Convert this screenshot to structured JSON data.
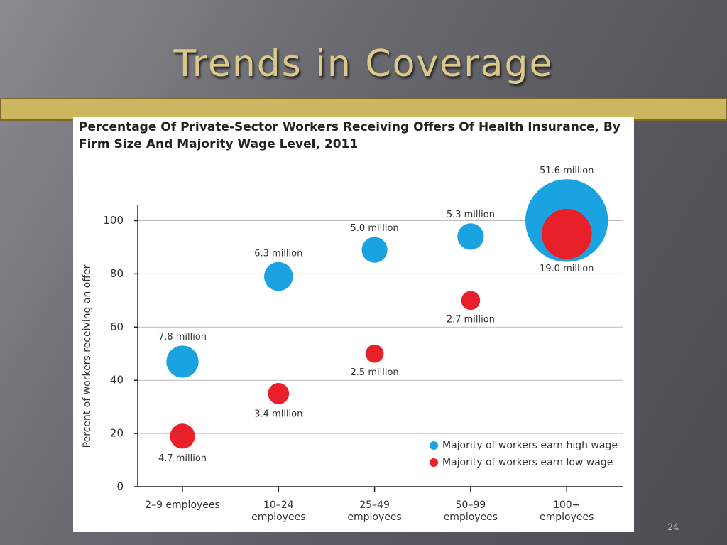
{
  "slide_title": "Trends in Coverage",
  "page_number": "24",
  "chart_data": {
    "type": "bubble",
    "title": "Percentage Of Private-Sector Workers Receiving Offers Of Health Insurance, By Firm Size And Majority Wage Level, 2011",
    "ylabel": "Percent of workers receiving an offer",
    "categories": [
      "2–9 employees",
      "10–24 employees",
      "25–49 employees",
      "50–99 employees",
      "100+ employees"
    ],
    "ylim": [
      0,
      106
    ],
    "yticks": [
      0,
      20,
      40,
      60,
      80,
      100
    ],
    "grid": true,
    "legend": "lower right",
    "series": [
      {
        "name": "Majority of workers earn high wage",
        "color": "#1aa3e0",
        "values": [
          47,
          79,
          89,
          94,
          100
        ],
        "sizes": [
          7.8,
          6.3,
          5.0,
          5.3,
          51.6
        ],
        "size_labels": [
          "7.8 million",
          "6.3 million",
          "5.0 million",
          "5.3 million",
          "51.6 million"
        ]
      },
      {
        "name": "Majority of workers earn low wage",
        "color": "#e8202a",
        "values": [
          19,
          35,
          50,
          70,
          95
        ],
        "sizes": [
          4.7,
          3.4,
          2.5,
          2.7,
          19.0
        ],
        "size_labels": [
          "4.7 million",
          "3.4 million",
          "2.5 million",
          "2.7 million",
          "19.0 million"
        ]
      }
    ]
  }
}
